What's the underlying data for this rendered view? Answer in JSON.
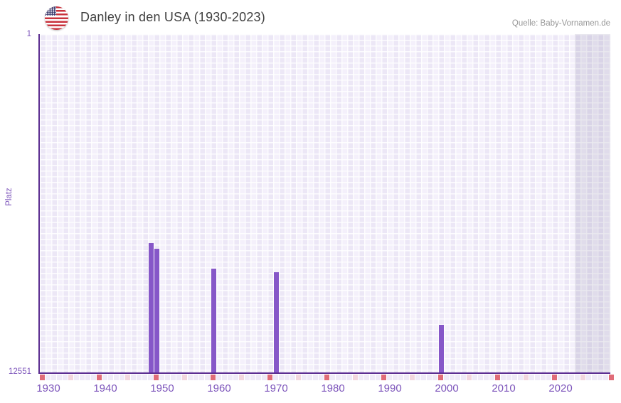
{
  "header": {
    "title": "Danley in den USA (1930-2023)",
    "source": "Quelle: Baby-Vornamen.de"
  },
  "chart_data": {
    "type": "bar",
    "title": "Danley in den USA (1930-2023)",
    "source": "Quelle: Baby-Vornamen.de",
    "xlabel": "",
    "ylabel": "Platz",
    "y_axis": {
      "min": 1,
      "max": 12551,
      "inverted": true,
      "top_label": "1",
      "bottom_label": "12551"
    },
    "x_axis": {
      "start_year": 1929,
      "end_year": 2029,
      "tick_years": [
        1930,
        1940,
        1950,
        1960,
        1970,
        1980,
        1990,
        2000,
        2010,
        2020
      ],
      "marker_interval_years": 5,
      "decade_marker_color": "#e06c78",
      "half_decade_marker_color": "#f2d6de"
    },
    "points": [
      {
        "year": 1948,
        "rank": 7750
      },
      {
        "year": 1949,
        "rank": 7960
      },
      {
        "year": 1959,
        "rank": 8700
      },
      {
        "year": 1970,
        "rank": 8830
      },
      {
        "year": 1999,
        "rank": 10780
      }
    ],
    "no_data_region": {
      "from_year": 2023,
      "to_year": 2029
    },
    "colors": {
      "bar": "#8657c8",
      "axis": "#5c2e91",
      "tick_label": "#7d55bb",
      "grid_cell_dark": "#ece7f6",
      "grid_cell_light": "#f4f0fb",
      "title": "#3f3f3f",
      "source": "#979797"
    },
    "legend": null,
    "grid": "checkered"
  }
}
